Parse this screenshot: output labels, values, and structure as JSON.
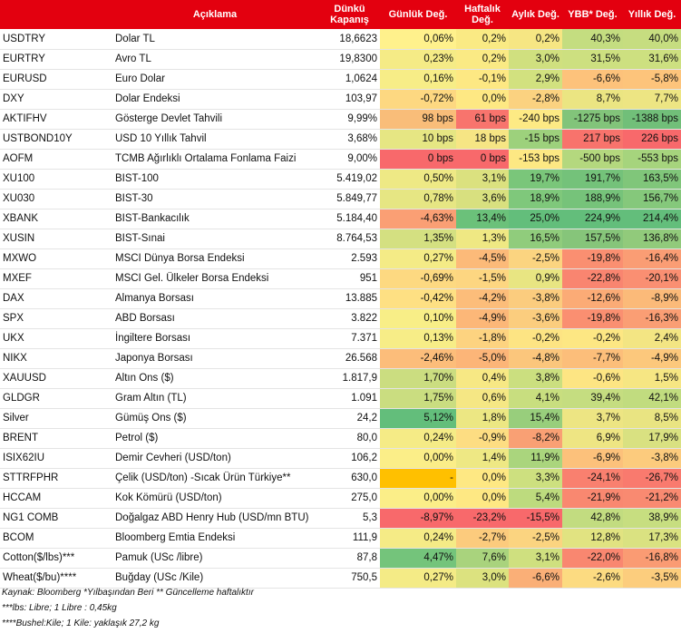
{
  "headers": [
    "",
    "Açıklama",
    "Dünkü Kapanış",
    "Günlük Değ.",
    "Haftalık Değ.",
    "Aylık Değ.",
    "YBB* Değ.",
    "Yıllık Değ."
  ],
  "rows": [
    {
      "code": "USDTRY",
      "desc": "Dolar TL",
      "close": "18,6623",
      "cells": [
        [
          "0,06%",
          "#fff18c"
        ],
        [
          "0,2%",
          "#faea84"
        ],
        [
          "0,2%",
          "#f6e683"
        ],
        [
          "40,3%",
          "#c4dd80"
        ],
        [
          "40,0%",
          "#c6dd80"
        ]
      ]
    },
    {
      "code": "EURTRY",
      "desc": "Avro TL",
      "close": "19,8300",
      "cells": [
        [
          "0,23%",
          "#f5eb86"
        ],
        [
          "0,2%",
          "#faea84"
        ],
        [
          "3,0%",
          "#d0e07f"
        ],
        [
          "31,5%",
          "#cde080"
        ],
        [
          "31,6%",
          "#cde080"
        ]
      ]
    },
    {
      "code": "EURUSD",
      "desc": "Euro Dolar",
      "close": "1,0624",
      "cells": [
        [
          "0,16%",
          "#f7ed87"
        ],
        [
          "-0,1%",
          "#fde883"
        ],
        [
          "2,9%",
          "#d2e17f"
        ],
        [
          "-6,6%",
          "#fdc27b"
        ],
        [
          "-5,8%",
          "#fdc47b"
        ]
      ]
    },
    {
      "code": "DXY",
      "desc": "Dolar Endeksi",
      "close": "103,97",
      "cells": [
        [
          "-0,72%",
          "#fdd881"
        ],
        [
          "0,0%",
          "#fee883"
        ],
        [
          "-2,8%",
          "#fbd280"
        ],
        [
          "8,7%",
          "#ebe582"
        ],
        [
          "7,7%",
          "#ede583"
        ]
      ]
    },
    {
      "code": "AKTIFHV",
      "desc": "Gösterge Devlet Tahvili",
      "close": "9,99%",
      "cells": [
        [
          "98 bps",
          "#f9bd79"
        ],
        [
          "61 bps",
          "#f8746d"
        ],
        [
          "-240 bps",
          "#fdea84"
        ],
        [
          "-1275 bps",
          "#82c47a"
        ],
        [
          "-1388 bps",
          "#71bf79"
        ]
      ]
    },
    {
      "code": "USTBOND10Y",
      "desc": "USD 10 Yıllık Tahvil",
      "close": "3,68%",
      "cells": [
        [
          "10 bps",
          "#e6e683"
        ],
        [
          "18 bps",
          "#f6e584"
        ],
        [
          "-15 bps",
          "#9dd17c"
        ],
        [
          "217 bps",
          "#f8736c"
        ],
        [
          "226 bps",
          "#f8696b"
        ]
      ]
    },
    {
      "code": "AOFM",
      "desc": "TCMB Ağırlıklı Ortalama Fonlama Faizi",
      "close": "9,00%",
      "cells": [
        [
          "0 bps",
          "#f8696b"
        ],
        [
          "0 bps",
          "#f8696b"
        ],
        [
          "-153 bps",
          "#fde883"
        ],
        [
          "-500 bps",
          "#b4d87e"
        ],
        [
          "-553 bps",
          "#a6d47d"
        ]
      ]
    },
    {
      "code": "XU100",
      "desc": "BIST-100",
      "close": "5.419,02",
      "cells": [
        [
          "0,50%",
          "#eee985"
        ],
        [
          "3,1%",
          "#dbe17f"
        ],
        [
          "19,7%",
          "#7ac67a"
        ],
        [
          "191,7%",
          "#74c27a"
        ],
        [
          "163,5%",
          "#80c67a"
        ]
      ]
    },
    {
      "code": "XU030",
      "desc": "BIST-30",
      "close": "5.849,77",
      "cells": [
        [
          "0,78%",
          "#e6e683"
        ],
        [
          "3,6%",
          "#d8e07f"
        ],
        [
          "18,9%",
          "#7fc87b"
        ],
        [
          "188,9%",
          "#76c37a"
        ],
        [
          "156,7%",
          "#85c87b"
        ]
      ]
    },
    {
      "code": "XBANK",
      "desc": "BIST-Bankacılık",
      "close": "5.184,40",
      "cells": [
        [
          "-4,63%",
          "#fa9f74"
        ],
        [
          "13,4%",
          "#6bc17a"
        ],
        [
          "25,0%",
          "#63be7b"
        ],
        [
          "224,9%",
          "#63be7b"
        ],
        [
          "214,4%",
          "#63be7b"
        ]
      ]
    },
    {
      "code": "XUSIN",
      "desc": "BIST-Sınai",
      "close": "8.764,53",
      "cells": [
        [
          "1,35%",
          "#d4e081"
        ],
        [
          "1,3%",
          "#efe883"
        ],
        [
          "16,5%",
          "#90cc7c"
        ],
        [
          "157,5%",
          "#86c57a"
        ],
        [
          "136,8%",
          "#91ca7b"
        ]
      ]
    },
    {
      "code": "MXWO",
      "desc": "MSCI Dünya Borsa Endeksi",
      "close": "2.593",
      "cells": [
        [
          "0,27%",
          "#f4eb86"
        ],
        [
          "-4,5%",
          "#fcba79"
        ],
        [
          "-2,5%",
          "#fbd480"
        ],
        [
          "-19,8%",
          "#fa8f71"
        ],
        [
          "-16,4%",
          "#fa9d74"
        ]
      ]
    },
    {
      "code": "MXEF",
      "desc": "MSCI Gel. Ülkeler Borsa Endeksi",
      "close": "951",
      "cells": [
        [
          "-0,69%",
          "#fdd981"
        ],
        [
          "-1,5%",
          "#fdd681"
        ],
        [
          "0,9%",
          "#e8e582"
        ],
        [
          "-22,8%",
          "#f98570"
        ],
        [
          "-20,1%",
          "#fa8f72"
        ]
      ]
    },
    {
      "code": "DAX",
      "desc": "Almanya Borsası",
      "close": "13.885",
      "cells": [
        [
          "-0,42%",
          "#fee083"
        ],
        [
          "-4,2%",
          "#fcbd7a"
        ],
        [
          "-3,8%",
          "#fbcc7e"
        ],
        [
          "-12,6%",
          "#fbab76"
        ],
        [
          "-8,9%",
          "#fbba79"
        ]
      ]
    },
    {
      "code": "SPX",
      "desc": "ABD Borsası",
      "close": "3.822",
      "cells": [
        [
          "0,10%",
          "#f8ee87"
        ],
        [
          "-4,9%",
          "#fcb778"
        ],
        [
          "-3,6%",
          "#fbcd7e"
        ],
        [
          "-19,8%",
          "#fa8f71"
        ],
        [
          "-16,3%",
          "#fa9e74"
        ]
      ]
    },
    {
      "code": "UKX",
      "desc": "İngiltere Borsası",
      "close": "7.371",
      "cells": [
        [
          "0,13%",
          "#f7ed87"
        ],
        [
          "-1,8%",
          "#fdd380"
        ],
        [
          "-0,2%",
          "#fde483"
        ],
        [
          "-0,2%",
          "#fde783"
        ],
        [
          "2,4%",
          "#f3e583"
        ]
      ]
    },
    {
      "code": "NIKX",
      "desc": "Japonya Borsası",
      "close": "26.568",
      "cells": [
        [
          "-2,46%",
          "#fcbd7a"
        ],
        [
          "-5,0%",
          "#fcb578"
        ],
        [
          "-4,8%",
          "#fbc67c"
        ],
        [
          "-7,7%",
          "#fcbe7a"
        ],
        [
          "-4,9%",
          "#fcc87c"
        ]
      ]
    },
    {
      "code": "XAUUSD",
      "desc": "Altın Ons ($)",
      "close": "1.817,9",
      "cells": [
        [
          "1,70%",
          "#cbdd80"
        ],
        [
          "0,4%",
          "#f7e884"
        ],
        [
          "3,8%",
          "#cbdf7f"
        ],
        [
          "-0,6%",
          "#fde583"
        ],
        [
          "1,5%",
          "#f6e683"
        ]
      ]
    },
    {
      "code": "GLDGR",
      "desc": "Gram Altın (TL)",
      "close": "1.091",
      "cells": [
        [
          "1,75%",
          "#cadd80"
        ],
        [
          "0,6%",
          "#f5e784"
        ],
        [
          "4,1%",
          "#c8de7f"
        ],
        [
          "39,4%",
          "#c5dd80"
        ],
        [
          "42,1%",
          "#c1dc7f"
        ]
      ]
    },
    {
      "code": "Silver",
      "desc": "Gümüş Ons ($)",
      "close": "24,2",
      "cells": [
        [
          "5,12%",
          "#63be7b"
        ],
        [
          "1,8%",
          "#ece783"
        ],
        [
          "15,4%",
          "#98ce7c"
        ],
        [
          "3,7%",
          "#ede583"
        ],
        [
          "8,5%",
          "#e9e482"
        ]
      ]
    },
    {
      "code": "BRENT",
      "desc": "Petrol ($)",
      "close": "80,0",
      "cells": [
        [
          "0,24%",
          "#f5eb86"
        ],
        [
          "-0,9%",
          "#fddd82"
        ],
        [
          "-8,2%",
          "#f9a074"
        ],
        [
          "6,9%",
          "#eee583"
        ],
        [
          "17,9%",
          "#d9e181"
        ]
      ]
    },
    {
      "code": "ISIX62IU",
      "desc": "Demir Cevheri (USD/ton)",
      "close": "106,2",
      "cells": [
        [
          "0,00%",
          "#fbee88"
        ],
        [
          "1,4%",
          "#eee884"
        ],
        [
          "11,9%",
          "#aad57d"
        ],
        [
          "-6,9%",
          "#fcc17b"
        ],
        [
          "-3,8%",
          "#fccb7d"
        ]
      ]
    },
    {
      "code": "STTRFPHR",
      "desc": "Çelik (USD/ton) -Sıcak Ürün Türkiye**",
      "close": "630,0",
      "cells": [
        [
          "-",
          "#ffc000"
        ],
        [
          "0,0%",
          "#fee883"
        ],
        [
          "3,3%",
          "#cde07f"
        ],
        [
          "-24,1%",
          "#f9806f"
        ],
        [
          "-26,7%",
          "#f97a6e"
        ]
      ]
    },
    {
      "code": "HCCAM",
      "desc": "Kok Kömürü (USD/ton)",
      "close": "275,0",
      "cells": [
        [
          "0,00%",
          "#fbee88"
        ],
        [
          "0,0%",
          "#fee883"
        ],
        [
          "5,4%",
          "#bddb7e"
        ],
        [
          "-21,9%",
          "#f98870"
        ],
        [
          "-21,2%",
          "#f98a71"
        ]
      ]
    },
    {
      "code": "NG1 COMB",
      "desc": "Doğalgaz ABD Henry Hub (USD/mn BTU)",
      "close": "5,3",
      "cells": [
        [
          "-8,97%",
          "#f8696b"
        ],
        [
          "-23,2%",
          "#f8696b"
        ],
        [
          "-15,5%",
          "#f8696b"
        ],
        [
          "42,8%",
          "#c2dc80"
        ],
        [
          "38,9%",
          "#c7de80"
        ]
      ]
    },
    {
      "code": "BCOM",
      "desc": "Bloomberg Emtia Endeksi",
      "close": "111,9",
      "cells": [
        [
          "0,24%",
          "#f5eb86"
        ],
        [
          "-2,7%",
          "#fccb7d"
        ],
        [
          "-2,5%",
          "#fbd480"
        ],
        [
          "12,8%",
          "#e1e381"
        ],
        [
          "17,3%",
          "#dae281"
        ]
      ]
    },
    {
      "code": "Cotton($/lbs)***",
      "desc": "Pamuk (USc /libre)",
      "close": "87,8",
      "cells": [
        [
          "4,47%",
          "#74c47b"
        ],
        [
          "7,6%",
          "#a9d37d"
        ],
        [
          "3,1%",
          "#cfe07f"
        ],
        [
          "-22,0%",
          "#f98770"
        ],
        [
          "-16,8%",
          "#fa9b73"
        ]
      ]
    },
    {
      "code": "Wheat($/bu)****",
      "desc": "Buğday (USc /Kile)",
      "close": "750,5",
      "cells": [
        [
          "0,27%",
          "#f4eb86"
        ],
        [
          "3,0%",
          "#dce27f"
        ],
        [
          "-6,6%",
          "#faaf77"
        ],
        [
          "-2,6%",
          "#fcdb81"
        ],
        [
          "-3,5%",
          "#fccd7d"
        ]
      ]
    }
  ],
  "footnotes": [
    "Kaynak: Bloomberg *Yılbaşından Beri  ** Güncelleme haftalıktır",
    "***lbs: Libre; 1 Libre : 0,45kg",
    "****Bushel:Kile; 1 Kile: yaklaşık 27,2 kg"
  ]
}
